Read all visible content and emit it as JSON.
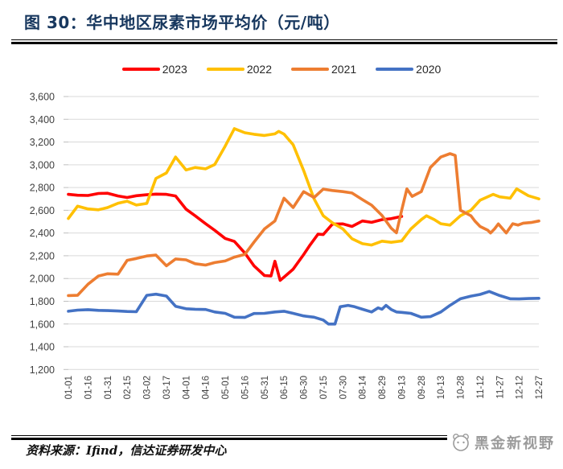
{
  "page": {
    "title": "图 30：华中地区尿素市场平均价（元/吨）",
    "source": "资料来源：Ifind，信达证券研发中心",
    "watermark": "黑金新视野"
  },
  "colors": {
    "title_navy": "#17375E",
    "gridline": "#D9D9D9",
    "axis_tick": "#BFBFBF",
    "tick_text": "#404040",
    "series_2023": "#FF0000",
    "series_2022": "#FFC000",
    "series_2021": "#ED7D31",
    "series_2020": "#4472C4"
  },
  "chart_data": {
    "type": "line",
    "title": "华中地区尿素市场平均价（元/吨）",
    "xlabel": "",
    "ylabel": "元/吨",
    "ylim": [
      1200,
      3600
    ],
    "ytick_step": 200,
    "yticks": [
      1200,
      1400,
      1600,
      1800,
      2000,
      2200,
      2400,
      2600,
      2800,
      3000,
      3200,
      3400,
      3600
    ],
    "xticks": [
      "01-01",
      "01-16",
      "01-31",
      "02-15",
      "03-02",
      "03-17",
      "04-01",
      "04-16",
      "05-01",
      "05-16",
      "05-31",
      "06-15",
      "06-30",
      "07-15",
      "07-30",
      "08-14",
      "08-29",
      "09-13",
      "09-28",
      "10-13",
      "10-28",
      "11-12",
      "11-27",
      "12-12",
      "12-27"
    ],
    "grid": true,
    "legend_position": "top",
    "series": [
      {
        "name": "2023",
        "color": "#FF0000",
        "points": [
          [
            "01-01",
            2740
          ],
          [
            "01-08",
            2732
          ],
          [
            "01-16",
            2730
          ],
          [
            "01-24",
            2748
          ],
          [
            "01-31",
            2750
          ],
          [
            "02-08",
            2726
          ],
          [
            "02-15",
            2712
          ],
          [
            "02-22",
            2728
          ],
          [
            "03-02",
            2736
          ],
          [
            "03-09",
            2742
          ],
          [
            "03-17",
            2740
          ],
          [
            "03-24",
            2726
          ],
          [
            "04-01",
            2610
          ],
          [
            "04-08",
            2552
          ],
          [
            "04-16",
            2482
          ],
          [
            "04-23",
            2424
          ],
          [
            "05-01",
            2352
          ],
          [
            "05-08",
            2326
          ],
          [
            "05-16",
            2224
          ],
          [
            "05-23",
            2112
          ],
          [
            "05-31",
            2026
          ],
          [
            "06-05",
            2022
          ],
          [
            "06-08",
            2152
          ],
          [
            "06-12",
            1984
          ],
          [
            "06-15",
            2012
          ],
          [
            "06-22",
            2082
          ],
          [
            "06-30",
            2210
          ],
          [
            "07-05",
            2296
          ],
          [
            "07-11",
            2390
          ],
          [
            "07-15",
            2386
          ],
          [
            "07-22",
            2478
          ],
          [
            "07-30",
            2480
          ],
          [
            "08-06",
            2458
          ],
          [
            "08-14",
            2506
          ],
          [
            "08-21",
            2494
          ],
          [
            "08-29",
            2518
          ],
          [
            "09-05",
            2526
          ],
          [
            "09-13",
            2546
          ]
        ]
      },
      {
        "name": "2022",
        "color": "#FFC000",
        "points": [
          [
            "01-01",
            2528
          ],
          [
            "01-08",
            2636
          ],
          [
            "01-16",
            2612
          ],
          [
            "01-24",
            2604
          ],
          [
            "01-31",
            2624
          ],
          [
            "02-08",
            2662
          ],
          [
            "02-15",
            2680
          ],
          [
            "02-22",
            2646
          ],
          [
            "03-02",
            2660
          ],
          [
            "03-09",
            2880
          ],
          [
            "03-17",
            2928
          ],
          [
            "03-24",
            3068
          ],
          [
            "04-01",
            2954
          ],
          [
            "04-08",
            2976
          ],
          [
            "04-16",
            2964
          ],
          [
            "04-23",
            3002
          ],
          [
            "05-01",
            3164
          ],
          [
            "05-08",
            3318
          ],
          [
            "05-16",
            3282
          ],
          [
            "05-23",
            3268
          ],
          [
            "05-31",
            3258
          ],
          [
            "06-08",
            3272
          ],
          [
            "06-11",
            3294
          ],
          [
            "06-15",
            3270
          ],
          [
            "06-22",
            3176
          ],
          [
            "06-30",
            2950
          ],
          [
            "07-08",
            2700
          ],
          [
            "07-15",
            2552
          ],
          [
            "07-22",
            2490
          ],
          [
            "07-30",
            2436
          ],
          [
            "08-06",
            2350
          ],
          [
            "08-14",
            2306
          ],
          [
            "08-21",
            2294
          ],
          [
            "08-29",
            2328
          ],
          [
            "09-05",
            2318
          ],
          [
            "09-13",
            2330
          ],
          [
            "09-20",
            2436
          ],
          [
            "09-28",
            2518
          ],
          [
            "10-02",
            2552
          ],
          [
            "10-08",
            2518
          ],
          [
            "10-13",
            2482
          ],
          [
            "10-20",
            2470
          ],
          [
            "10-28",
            2552
          ],
          [
            "11-05",
            2600
          ],
          [
            "11-12",
            2688
          ],
          [
            "11-22",
            2740
          ],
          [
            "11-27",
            2718
          ],
          [
            "12-05",
            2706
          ],
          [
            "12-10",
            2788
          ],
          [
            "12-19",
            2728
          ],
          [
            "12-27",
            2700
          ]
        ]
      },
      {
        "name": "2021",
        "color": "#ED7D31",
        "points": [
          [
            "01-01",
            1850
          ],
          [
            "01-08",
            1852
          ],
          [
            "01-16",
            1950
          ],
          [
            "01-24",
            2022
          ],
          [
            "01-31",
            2042
          ],
          [
            "02-08",
            2038
          ],
          [
            "02-15",
            2160
          ],
          [
            "02-22",
            2176
          ],
          [
            "03-02",
            2198
          ],
          [
            "03-09",
            2206
          ],
          [
            "03-17",
            2112
          ],
          [
            "03-24",
            2172
          ],
          [
            "04-01",
            2164
          ],
          [
            "04-08",
            2130
          ],
          [
            "04-16",
            2118
          ],
          [
            "04-23",
            2140
          ],
          [
            "05-01",
            2154
          ],
          [
            "05-08",
            2188
          ],
          [
            "05-16",
            2212
          ],
          [
            "05-23",
            2320
          ],
          [
            "05-31",
            2436
          ],
          [
            "06-08",
            2506
          ],
          [
            "06-15",
            2706
          ],
          [
            "06-22",
            2624
          ],
          [
            "06-30",
            2764
          ],
          [
            "07-08",
            2712
          ],
          [
            "07-15",
            2786
          ],
          [
            "07-22",
            2774
          ],
          [
            "07-30",
            2764
          ],
          [
            "08-06",
            2752
          ],
          [
            "08-14",
            2694
          ],
          [
            "08-21",
            2645
          ],
          [
            "08-29",
            2554
          ],
          [
            "09-05",
            2442
          ],
          [
            "09-09",
            2402
          ],
          [
            "09-13",
            2600
          ],
          [
            "09-17",
            2788
          ],
          [
            "09-21",
            2722
          ],
          [
            "09-28",
            2764
          ],
          [
            "10-05",
            2976
          ],
          [
            "10-13",
            3068
          ],
          [
            "10-20",
            3098
          ],
          [
            "10-24",
            3082
          ],
          [
            "10-28",
            2600
          ],
          [
            "11-01",
            2576
          ],
          [
            "11-05",
            2552
          ],
          [
            "11-08",
            2506
          ],
          [
            "11-12",
            2458
          ],
          [
            "11-18",
            2424
          ],
          [
            "11-20",
            2400
          ],
          [
            "11-23",
            2436
          ],
          [
            "11-26",
            2480
          ],
          [
            "12-02",
            2400
          ],
          [
            "12-07",
            2482
          ],
          [
            "12-11",
            2470
          ],
          [
            "12-15",
            2487
          ],
          [
            "12-21",
            2492
          ],
          [
            "12-27",
            2506
          ]
        ]
      },
      {
        "name": "2020",
        "color": "#4472C4",
        "points": [
          [
            "01-01",
            1712
          ],
          [
            "01-08",
            1722
          ],
          [
            "01-16",
            1726
          ],
          [
            "01-24",
            1720
          ],
          [
            "01-31",
            1718
          ],
          [
            "02-08",
            1714
          ],
          [
            "02-15",
            1710
          ],
          [
            "02-22",
            1708
          ],
          [
            "03-02",
            1852
          ],
          [
            "03-09",
            1862
          ],
          [
            "03-17",
            1846
          ],
          [
            "03-24",
            1756
          ],
          [
            "04-01",
            1734
          ],
          [
            "04-08",
            1730
          ],
          [
            "04-16",
            1728
          ],
          [
            "04-23",
            1706
          ],
          [
            "05-01",
            1694
          ],
          [
            "05-08",
            1660
          ],
          [
            "05-16",
            1658
          ],
          [
            "05-23",
            1692
          ],
          [
            "05-31",
            1694
          ],
          [
            "06-08",
            1706
          ],
          [
            "06-15",
            1712
          ],
          [
            "06-22",
            1694
          ],
          [
            "06-30",
            1671
          ],
          [
            "07-08",
            1660
          ],
          [
            "07-15",
            1635
          ],
          [
            "07-19",
            1600
          ],
          [
            "07-24",
            1600
          ],
          [
            "07-28",
            1752
          ],
          [
            "08-03",
            1764
          ],
          [
            "08-08",
            1752
          ],
          [
            "08-14",
            1730
          ],
          [
            "08-21",
            1706
          ],
          [
            "08-26",
            1742
          ],
          [
            "08-29",
            1730
          ],
          [
            "09-01",
            1764
          ],
          [
            "09-05",
            1728
          ],
          [
            "09-09",
            1706
          ],
          [
            "09-13",
            1702
          ],
          [
            "09-20",
            1694
          ],
          [
            "09-28",
            1660
          ],
          [
            "10-05",
            1665
          ],
          [
            "10-13",
            1706
          ],
          [
            "10-20",
            1764
          ],
          [
            "10-28",
            1822
          ],
          [
            "11-05",
            1845
          ],
          [
            "11-12",
            1860
          ],
          [
            "11-19",
            1886
          ],
          [
            "11-27",
            1850
          ],
          [
            "12-05",
            1822
          ],
          [
            "12-12",
            1820
          ],
          [
            "12-19",
            1824
          ],
          [
            "12-27",
            1826
          ]
        ]
      }
    ]
  }
}
